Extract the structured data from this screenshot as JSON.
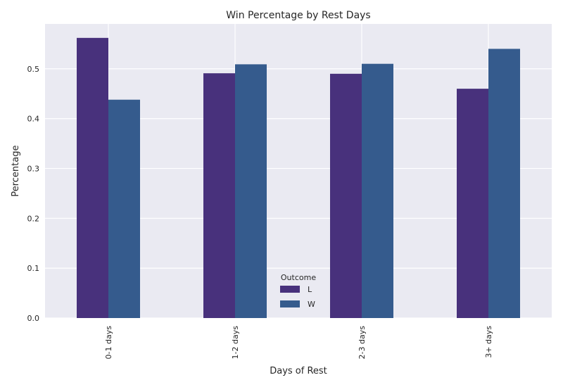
{
  "chart_data": {
    "type": "bar",
    "title": "Win Percentage by Rest Days",
    "xlabel": "Days of Rest",
    "ylabel": "Percentage",
    "categories": [
      "0-1 days",
      "1-2 days",
      "2-3 days",
      "3+ days"
    ],
    "series": [
      {
        "name": "L",
        "color": "#48317c",
        "values": [
          0.562,
          0.491,
          0.49,
          0.46
        ]
      },
      {
        "name": "W",
        "color": "#355b8d",
        "values": [
          0.438,
          0.509,
          0.51,
          0.54
        ]
      }
    ],
    "ylim": [
      0,
      0.59
    ],
    "yticks": [
      0.0,
      0.1,
      0.2,
      0.3,
      0.4,
      0.5
    ],
    "ytick_labels": [
      "0.0",
      "0.1",
      "0.2",
      "0.3",
      "0.4",
      "0.5"
    ],
    "grid": true,
    "background": "#eaeaf2",
    "legend": {
      "title": "Outcome",
      "placement": "lower-center"
    }
  }
}
